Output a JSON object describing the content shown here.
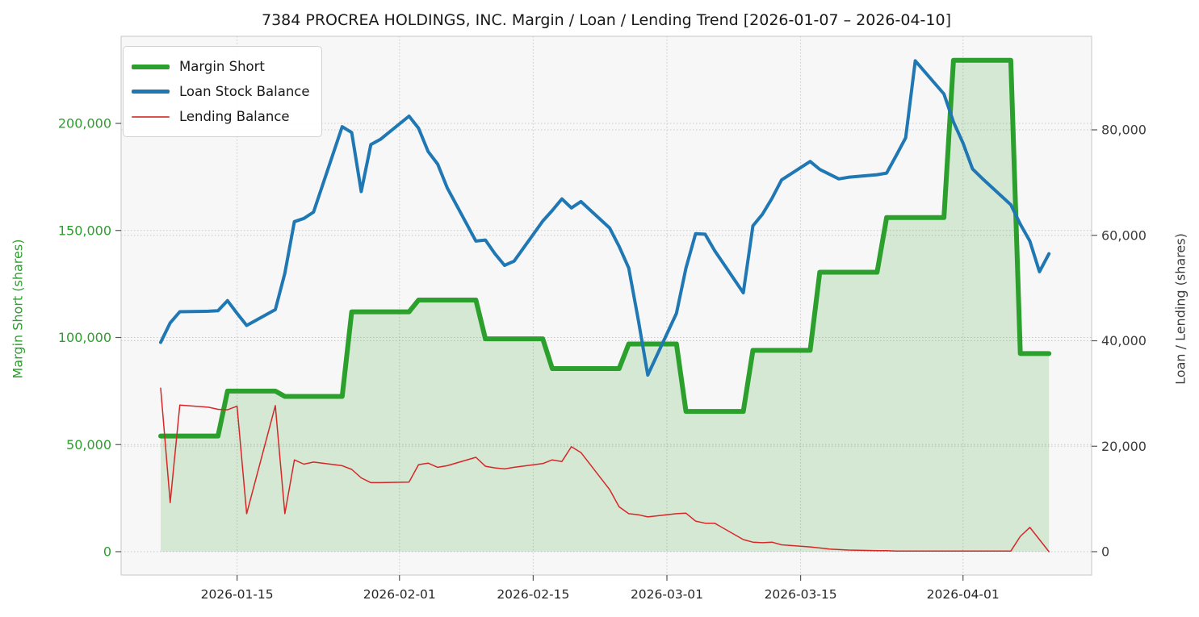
{
  "title": "7384 PROCREA HOLDINGS, INC. Margin / Loan / Lending Trend [2026-01-07 – 2026-04-10]",
  "legend": {
    "items": [
      {
        "label": "Margin Short",
        "color": "#2ca02c",
        "thickness": 6
      },
      {
        "label": "Loan Stock Balance",
        "color": "#1f77b4",
        "thickness": 4.5
      },
      {
        "label": "Lending Balance",
        "color": "#d9534f",
        "thickness": 2
      }
    ]
  },
  "left_axis": {
    "label": "Margin Short (shares)",
    "color": "#2ca02c",
    "ticks": [
      "0",
      "50,000",
      "100,000",
      "150,000",
      "200,000"
    ],
    "tick_values": [
      0,
      50000,
      100000,
      150000,
      200000
    ]
  },
  "right_axis": {
    "label": "Loan / Lending (shares)",
    "color": "#3d3d3d",
    "ticks": [
      "0",
      "20,000",
      "40,000",
      "60,000",
      "80,000"
    ],
    "tick_values": [
      0,
      20000,
      40000,
      60000,
      80000
    ]
  },
  "x_axis": {
    "ticks": [
      {
        "label": "2026-01-15",
        "date": "2026-01-15"
      },
      {
        "label": "2026-02-01",
        "date": "2026-02-01"
      },
      {
        "label": "2026-02-15",
        "date": "2026-02-15"
      },
      {
        "label": "2026-03-01",
        "date": "2026-03-01"
      },
      {
        "label": "2026-03-15",
        "date": "2026-03-15"
      },
      {
        "label": "2026-04-01",
        "date": "2026-04-01"
      }
    ]
  },
  "chart_data": {
    "type": "line",
    "title": "7384 PROCREA HOLDINGS, INC. Margin / Loan / Lending Trend [2026-01-07 – 2026-04-10]",
    "xlabel": "",
    "ylabel_left": "Margin Short (shares)",
    "ylabel_right": "Loan / Lending (shares)",
    "ylim_left": [
      0,
      240600
    ],
    "ylim_right": [
      0,
      97700
    ],
    "grid": "dotted",
    "legend_position": "upper-left",
    "x": [
      "2026-01-07",
      "2026-01-08",
      "2026-01-09",
      "2026-01-12",
      "2026-01-13",
      "2026-01-14",
      "2026-01-15",
      "2026-01-16",
      "2026-01-19",
      "2026-01-20",
      "2026-01-21",
      "2026-01-22",
      "2026-01-23",
      "2026-01-26",
      "2026-01-27",
      "2026-01-28",
      "2026-01-29",
      "2026-01-30",
      "2026-02-02",
      "2026-02-03",
      "2026-02-04",
      "2026-02-05",
      "2026-02-06",
      "2026-02-09",
      "2026-02-10",
      "2026-02-11",
      "2026-02-12",
      "2026-02-13",
      "2026-02-16",
      "2026-02-17",
      "2026-02-18",
      "2026-02-19",
      "2026-02-20",
      "2026-02-23",
      "2026-02-24",
      "2026-02-25",
      "2026-02-26",
      "2026-02-27",
      "2026-03-02",
      "2026-03-03",
      "2026-03-04",
      "2026-03-05",
      "2026-03-06",
      "2026-03-09",
      "2026-03-10",
      "2026-03-11",
      "2026-03-12",
      "2026-03-13",
      "2026-03-16",
      "2026-03-17",
      "2026-03-18",
      "2026-03-19",
      "2026-03-20",
      "2026-03-23",
      "2026-03-24",
      "2026-03-25",
      "2026-03-26",
      "2026-03-27",
      "2026-03-30",
      "2026-03-31",
      "2026-04-01",
      "2026-04-02",
      "2026-04-03",
      "2026-04-06",
      "2026-04-07",
      "2026-04-08",
      "2026-04-09",
      "2026-04-10"
    ],
    "series": [
      {
        "name": "Margin Short",
        "axis": "left",
        "color": "#2ca02c",
        "line_width": 6,
        "area_fill": "rgba(44,160,44,0.17)",
        "values": [
          54000,
          54000,
          54000,
          54000,
          54000,
          75000,
          75000,
          75000,
          75000,
          72500,
          72500,
          72500,
          72500,
          72500,
          112000,
          112000,
          112000,
          112000,
          112000,
          117500,
          117500,
          117500,
          117500,
          117500,
          99400,
          99400,
          99400,
          99400,
          99400,
          85500,
          85500,
          85500,
          85500,
          85500,
          85500,
          97000,
          97000,
          97000,
          97000,
          65500,
          65500,
          65500,
          65500,
          65500,
          94000,
          94000,
          94000,
          94000,
          94000,
          130500,
          130500,
          130500,
          130500,
          130500,
          156000,
          156000,
          156000,
          156000,
          156000,
          229500,
          229500,
          229500,
          229500,
          229500,
          92500,
          92500,
          92500,
          92500
        ]
      },
      {
        "name": "Loan Stock Balance",
        "axis": "right",
        "color": "#1f77b4",
        "line_width": 4,
        "values": [
          39700,
          43400,
          45500,
          45600,
          45700,
          47600,
          45200,
          42900,
          45900,
          52800,
          62600,
          63200,
          64400,
          80600,
          79500,
          68300,
          77200,
          78200,
          82600,
          80300,
          75900,
          73500,
          69000,
          58900,
          59100,
          56500,
          54300,
          55100,
          62700,
          64700,
          66900,
          65200,
          66400,
          61400,
          57900,
          53800,
          44000,
          33500,
          45200,
          53800,
          60300,
          60200,
          57100,
          49100,
          61800,
          64000,
          67000,
          70500,
          74000,
          72500,
          71600,
          70700,
          71000,
          71500,
          71800,
          75100,
          78500,
          93100,
          86800,
          81500,
          77500,
          72600,
          70800,
          65800,
          62100,
          58900,
          53100,
          56500
        ]
      },
      {
        "name": "Lending Balance",
        "axis": "right",
        "color": "#d62728",
        "line_width": 1.5,
        "values": [
          31000,
          9300,
          27800,
          27400,
          27000,
          26900,
          27600,
          7200,
          27700,
          7200,
          17400,
          16600,
          17000,
          16300,
          15600,
          14000,
          13100,
          13100,
          13200,
          16500,
          16800,
          16000,
          16300,
          17900,
          16200,
          15900,
          15700,
          16000,
          16700,
          17400,
          17100,
          19900,
          18800,
          11800,
          8500,
          7200,
          7000,
          6600,
          7200,
          7300,
          5800,
          5400,
          5400,
          2300,
          1800,
          1700,
          1800,
          1300,
          900,
          700,
          500,
          400,
          300,
          200,
          200,
          100,
          100,
          100,
          100,
          100,
          100,
          100,
          100,
          100,
          2900,
          4600,
          2300,
          0
        ]
      }
    ]
  },
  "style": {
    "plot_bg": "#f7f7f7",
    "figure_bg": "#ffffff",
    "grid_color": "#c9c9c9",
    "spine_color": "#cfcfcf",
    "tick_text_color": "#262626"
  }
}
